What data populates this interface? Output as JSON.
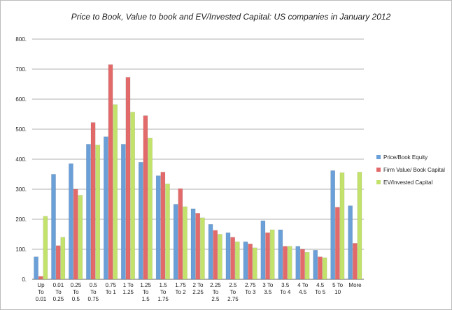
{
  "chart_data": {
    "type": "bar",
    "title": "Price to Book, Value to book and EV/Invested Capital: US companies in January 2012",
    "categories": [
      "Up\nTo\n0.01",
      "0.01\nTo\n0.25",
      "0.25\nTo\n0.5",
      "0.5\nTo\n0.75",
      "0.75\nTo 1",
      "1 To\n1.25",
      "1.25\nTo\n1.5",
      "1.5\nTo\n1.75",
      "1.75\nTo 2",
      "2 To\n2.25",
      "2.25\nTo\n2.5",
      "2.5\nTo\n2.75",
      "2.75\nTo 3",
      "3 To\n3.5",
      "3.5\nTo 4",
      "4 To\n4.5",
      "4.5\nTo 5",
      "5 To\n10",
      "More"
    ],
    "series": [
      {
        "name": "Price/Book Equity",
        "color": "#6a9fd8",
        "values": [
          75,
          350,
          385,
          450,
          475,
          450,
          390,
          345,
          250,
          235,
          183,
          155,
          125,
          195,
          165,
          110,
          97,
          362,
          245
        ]
      },
      {
        "name": "Firm Value/ Book Capital",
        "color": "#e36a6a",
        "values": [
          10,
          112,
          300,
          522,
          715,
          673,
          545,
          357,
          302,
          220,
          163,
          140,
          118,
          155,
          110,
          100,
          75,
          240,
          120
        ]
      },
      {
        "name": "EV/Invested Capital",
        "color": "#c3e26b",
        "values": [
          210,
          140,
          280,
          447,
          582,
          557,
          470,
          318,
          242,
          205,
          150,
          125,
          105,
          165,
          110,
          90,
          72,
          355,
          357
        ]
      }
    ],
    "ylim": [
      0,
      800
    ],
    "yticks": [
      {
        "value": 0,
        "label": "0."
      },
      {
        "value": 100,
        "label": "100."
      },
      {
        "value": 200,
        "label": "200."
      },
      {
        "value": 300,
        "label": "300."
      },
      {
        "value": 400,
        "label": "400."
      },
      {
        "value": 500,
        "label": "500."
      },
      {
        "value": 600,
        "label": "600."
      },
      {
        "value": 700,
        "label": "700."
      },
      {
        "value": 800,
        "label": "800."
      }
    ],
    "grid": true,
    "legend": "right"
  }
}
